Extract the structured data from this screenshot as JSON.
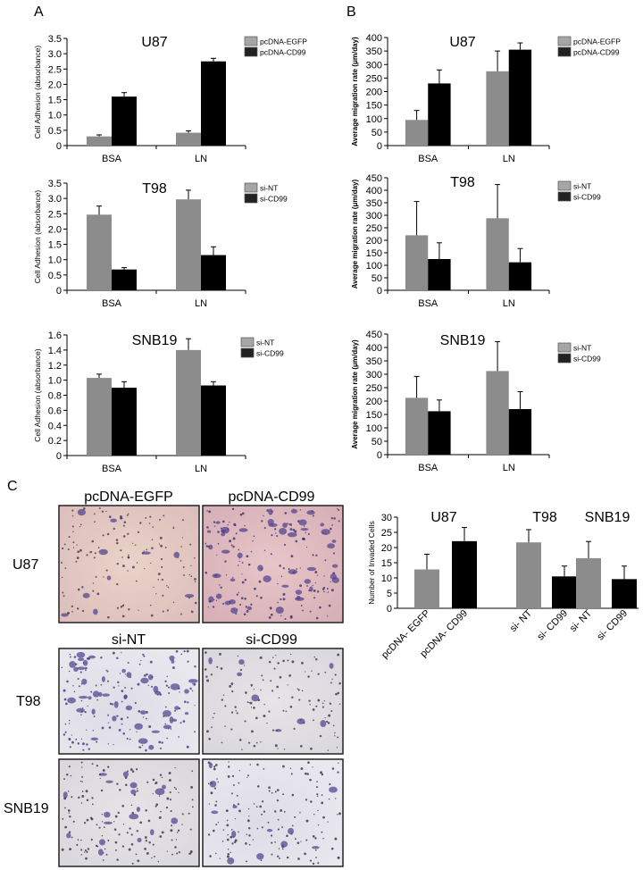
{
  "panel_labels": [
    "A",
    "B",
    "C"
  ],
  "colors": {
    "grey": "#8c8c8c",
    "black": "#000000",
    "legend_grey": "#a6a6a6"
  },
  "chart_data": [
    {
      "id": "a1",
      "type": "bar",
      "title": "U87",
      "categories": [
        "BSA",
        "LN"
      ],
      "series": [
        {
          "name": "pcDNA-EGFP",
          "values": [
            0.3,
            0.42
          ],
          "errors": [
            0.05,
            0.06
          ]
        },
        {
          "name": "pcDNA-CD99",
          "values": [
            1.6,
            2.75
          ],
          "errors": [
            0.13,
            0.1
          ]
        }
      ],
      "ylabel": "Cell Adhesion (absorbance)",
      "ylim": [
        0,
        3.5
      ],
      "yticks": [
        "0",
        "0.5",
        "1.0",
        "1.5",
        "2.0",
        "2.5",
        "3.0",
        "3.5"
      ],
      "legend": "right"
    },
    {
      "id": "a2",
      "type": "bar",
      "title": "T98",
      "categories": [
        "BSA",
        "LN"
      ],
      "series": [
        {
          "name": "si-NT",
          "values": [
            2.47,
            2.97
          ],
          "errors": [
            0.28,
            0.3
          ]
        },
        {
          "name": "si-CD99",
          "values": [
            0.68,
            1.15
          ],
          "errors": [
            0.06,
            0.27
          ]
        }
      ],
      "ylabel": "Cell Adhesion (absorbance)",
      "ylim": [
        0,
        3.5
      ],
      "yticks": [
        "0",
        "0.5",
        "1.0",
        "1.5",
        "2.0",
        "2.5",
        "3.0",
        "3.5"
      ],
      "legend": "right"
    },
    {
      "id": "a3",
      "type": "bar",
      "title": "SNB19",
      "categories": [
        "BSA",
        "LN"
      ],
      "series": [
        {
          "name": "si-NT",
          "values": [
            1.03,
            1.4
          ],
          "errors": [
            0.05,
            0.15
          ]
        },
        {
          "name": "si-CD99",
          "values": [
            0.9,
            0.93
          ],
          "errors": [
            0.08,
            0.05
          ]
        }
      ],
      "ylabel": "Cell Adhesion (absorbance)",
      "ylim": [
        0,
        1.6
      ],
      "yticks": [
        "0",
        "0.2",
        "0.4",
        "0.6",
        "0.8",
        "1.0",
        "1.2",
        "1.4",
        "1.6"
      ],
      "legend": "right"
    },
    {
      "id": "b1",
      "type": "bar",
      "title": "U87",
      "categories": [
        "BSA",
        "LN"
      ],
      "series": [
        {
          "name": "pcDNA-EGFP",
          "values": [
            95,
            275
          ],
          "errors": [
            35,
            75
          ]
        },
        {
          "name": "pcDNA-CD99",
          "values": [
            230,
            355
          ],
          "errors": [
            50,
            25
          ]
        }
      ],
      "ylabel": "Average migration rate (μm/day)",
      "ylim": [
        0,
        400
      ],
      "yticks": [
        "0",
        "50",
        "100",
        "150",
        "200",
        "250",
        "300",
        "350",
        "400"
      ],
      "legend": "right"
    },
    {
      "id": "b2",
      "type": "bar",
      "title": "T98",
      "categories": [
        "BSA",
        "LN"
      ],
      "series": [
        {
          "name": "si-NT",
          "values": [
            220,
            288
          ],
          "errors": [
            135,
            135
          ]
        },
        {
          "name": "si-CD99",
          "values": [
            125,
            112
          ],
          "errors": [
            65,
            55
          ]
        }
      ],
      "ylabel": "Average migration rate (μm/day)",
      "ylim": [
        0,
        450
      ],
      "yticks": [
        "0",
        "50",
        "100",
        "150",
        "200",
        "250",
        "300",
        "350",
        "400",
        "450"
      ],
      "legend": "right"
    },
    {
      "id": "b3",
      "type": "bar",
      "title": "SNB19",
      "categories": [
        "BSA",
        "LN"
      ],
      "series": [
        {
          "name": "si-NT",
          "values": [
            212,
            312
          ],
          "errors": [
            80,
            110
          ]
        },
        {
          "name": "si-CD99",
          "values": [
            162,
            170
          ],
          "errors": [
            42,
            65
          ]
        }
      ],
      "ylabel": "Average migration rate (μm/day)",
      "ylim": [
        0,
        450
      ],
      "yticks": [
        "0",
        "50",
        "100",
        "150",
        "200",
        "250",
        "300",
        "350",
        "400",
        "450"
      ],
      "legend": "right"
    },
    {
      "id": "c1",
      "type": "bar",
      "groups": [
        "U87",
        "T98",
        "SNB19"
      ],
      "categories": [
        "pcDNA- EGFP",
        "pcDNA- CD99",
        "si- NT",
        "si- CD99",
        "si- NT",
        "si- CD99"
      ],
      "values": [
        12.8,
        22.1,
        21.7,
        10.5,
        16.5,
        9.6
      ],
      "errors": [
        5.0,
        4.5,
        4.2,
        3.4,
        5.5,
        4.3
      ],
      "bar_colors": [
        "grey",
        "black",
        "grey",
        "black",
        "grey",
        "black"
      ],
      "ylabel": "Number of Invaded Cells",
      "ylim": [
        0,
        30
      ],
      "yticks": [
        "0",
        "5",
        "10",
        "15",
        "20",
        "25",
        "30"
      ]
    }
  ],
  "micrographs": {
    "column_headers": [
      [
        "pcDNA-EGFP",
        "pcDNA-CD99"
      ],
      [
        "si-NT",
        "si-CD99"
      ]
    ],
    "row_labels": [
      "U87",
      "T98",
      "SNB19"
    ]
  }
}
